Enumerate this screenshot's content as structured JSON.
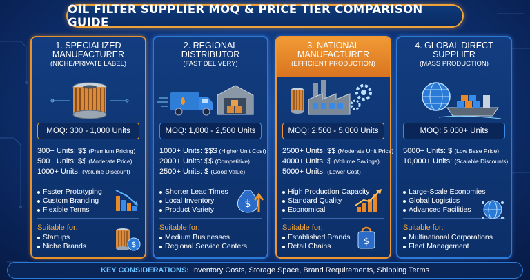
{
  "title": "OIL FILTER SUPPLIER MOQ & PRICE TIER COMPARISON GUIDE",
  "cards": [
    {
      "name_line1": "1. Specialized",
      "name_line2": "Manufacturer",
      "subtitle": "(NICHE/PRIVATE LABEL)",
      "moq": "MOQ: 300 - 1,000 Units",
      "tiers": [
        {
          "label": "300+ Units: $$",
          "hint": "(Premium Pricing)"
        },
        {
          "label": "500+ Units: $$",
          "hint": "(Moderate Price)"
        },
        {
          "label": "1000+ Units:",
          "hint": "(Volume Discount)"
        }
      ],
      "features": [
        "Faster Prototyping",
        "Custom Branding",
        "Flexible Terms"
      ],
      "suitable_title": "Suitable for:",
      "suitable": [
        "Startups",
        "Niche Brands"
      ],
      "icons": {
        "main": "oil-filter-icon",
        "feature": "bar-chart-down-icon",
        "suit": "filter-coin-icon"
      }
    },
    {
      "name_line1": "2. Regional",
      "name_line2": "Distributor",
      "subtitle": "(FAST DELIVERY)",
      "moq": "MOQ: 1,000 - 2,500 Units",
      "tiers": [
        {
          "label": "1000+ Units: $$$",
          "hint": "(Higher Unit Cost)"
        },
        {
          "label": "2000+ Units: $$",
          "hint": "(Competitive)"
        },
        {
          "label": "2500+ Units: $",
          "hint": "(Good Value)"
        }
      ],
      "features": [
        "Shorter Lead Times",
        "Local Inventory",
        "Product Variety"
      ],
      "suitable_title": "Suitable for:",
      "suitable": [
        "Medium Businesses",
        "Regional Service Centers"
      ],
      "icons": {
        "main": "truck-warehouse-icon",
        "feature": "money-bag-icon",
        "suit": ""
      }
    },
    {
      "name_line1": "3. National",
      "name_line2": "Manufacturer",
      "subtitle": "(EFFICIENT PRODUCTION)",
      "moq": "MOQ: 2,500 - 5,000 Units",
      "tiers": [
        {
          "label": "2500+ Units: $$",
          "hint": "(Moderate Unit Price)"
        },
        {
          "label": "4000+ Units: $",
          "hint": "(Volume Savings)"
        },
        {
          "label": "5000+ Units:",
          "hint": "(Lower Cost)"
        }
      ],
      "features": [
        "High Production Capacity",
        "Standard Quality",
        "Economical"
      ],
      "suitable_title": "Suitable for:",
      "suitable": [
        "Established Brands",
        "Retail Chains"
      ],
      "icons": {
        "main": "factory-gear-icon",
        "feature": "bar-chart-up-icon",
        "suit": "shopping-bag-icon"
      }
    },
    {
      "name_line1": "4. Global Direct",
      "name_line2": "Supplier",
      "subtitle": "(MASS PRODUCTION)",
      "moq": "MOQ: 5,000+ Units",
      "tiers": [
        {
          "label": "5000+ Units: $",
          "hint": "(Low Base Price)"
        },
        {
          "label": "10,000+ Units:",
          "hint": "(Scalable Discounts)"
        }
      ],
      "features": [
        "Large-Scale Economies",
        "Global Logistics",
        "Advanced Facilities"
      ],
      "suitable_title": "Suitable for:",
      "suitable": [
        "Multinational Corporations",
        "Fleet Management"
      ],
      "icons": {
        "main": "globe-ship-icon",
        "feature": "globe-network-icon",
        "suit": ""
      }
    }
  ],
  "footer": {
    "key": "KEY CONSIDERATIONS:",
    "value": "Inventory Costs, Storage Space, Brand Requirements, Shipping Terms"
  }
}
